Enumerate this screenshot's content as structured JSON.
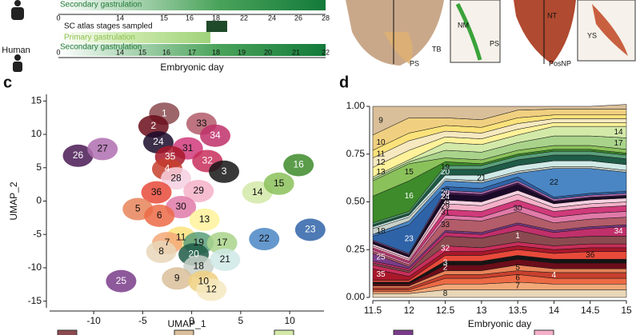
{
  "timeline": {
    "upper_label": "Secondary gastrulation",
    "upper_ticks": [
      0,
      14,
      15,
      16,
      18,
      22,
      24,
      26,
      28
    ],
    "species": "Human",
    "sc_label": "SC atlas stages sampled",
    "primary_label": "Primary gastrulation",
    "secondary_label": "Secondary gastrulation",
    "lower_ticks": [
      0,
      14,
      15,
      16,
      17,
      18,
      19,
      20,
      21,
      22
    ],
    "axis_title": "Embryonic day"
  },
  "images": {
    "labels": [
      "NM",
      "PS",
      "TB",
      "PS",
      "NT",
      "YS",
      "PosNP"
    ]
  },
  "panels": [
    "c",
    "d"
  ],
  "umap": {
    "type": "scatter",
    "x_label": "UMAP_1",
    "y_label": "UMAP_2",
    "xlim": [
      -14.5,
      13.5
    ],
    "ylim": [
      -16,
      16
    ],
    "xticks": [
      -10,
      -5,
      0,
      5,
      10
    ],
    "yticks": [
      -15,
      -10,
      -5,
      0,
      5,
      10,
      15
    ],
    "clusters": [
      {
        "label": "1",
        "x": -2.8,
        "y": 13.1
      },
      {
        "label": "2",
        "x": -3.9,
        "y": 11.2
      },
      {
        "label": "33",
        "x": 1.0,
        "y": 11.6
      },
      {
        "label": "34",
        "x": 2.4,
        "y": 9.8
      },
      {
        "label": "24",
        "x": -3.4,
        "y": 8.8
      },
      {
        "label": "31",
        "x": -0.4,
        "y": 7.9
      },
      {
        "label": "35",
        "x": -2.2,
        "y": 6.6
      },
      {
        "label": "32",
        "x": 1.6,
        "y": 6.0
      },
      {
        "label": "4",
        "x": -2.5,
        "y": 4.8
      },
      {
        "label": "28",
        "x": -1.6,
        "y": 3.4
      },
      {
        "label": "3",
        "x": 3.3,
        "y": 4.4
      },
      {
        "label": "36",
        "x": -3.6,
        "y": 1.3
      },
      {
        "label": "29",
        "x": 0.7,
        "y": 1.5
      },
      {
        "label": "30",
        "x": -1.1,
        "y": -0.9
      },
      {
        "label": "5",
        "x": -5.5,
        "y": -1.2
      },
      {
        "label": "6",
        "x": -3.3,
        "y": -2.2
      },
      {
        "label": "13",
        "x": 1.3,
        "y": -2.8
      },
      {
        "label": "11",
        "x": -1.1,
        "y": -5.5
      },
      {
        "label": "7",
        "x": -2.5,
        "y": -6.3
      },
      {
        "label": "8",
        "x": -3.1,
        "y": -7.6
      },
      {
        "label": "19",
        "x": 0.7,
        "y": -6.3
      },
      {
        "label": "17",
        "x": 3.1,
        "y": -6.3
      },
      {
        "label": "20",
        "x": 0.2,
        "y": -8.0
      },
      {
        "label": "18",
        "x": 0.7,
        "y": -9.8
      },
      {
        "label": "21",
        "x": 3.4,
        "y": -8.8
      },
      {
        "label": "9",
        "x": -1.5,
        "y": -11.6
      },
      {
        "label": "10",
        "x": 1.2,
        "y": -12.1
      },
      {
        "label": "12",
        "x": 2.0,
        "y": -13.3
      },
      {
        "label": "14",
        "x": 6.7,
        "y": 1.3
      },
      {
        "label": "15",
        "x": 8.9,
        "y": 2.6
      },
      {
        "label": "16",
        "x": 10.9,
        "y": 5.4
      },
      {
        "label": "22",
        "x": 7.4,
        "y": -5.7
      },
      {
        "label": "23",
        "x": 12.1,
        "y": -4.3
      },
      {
        "label": "25",
        "x": -7.2,
        "y": -12.0
      },
      {
        "label": "26",
        "x": -11.6,
        "y": 6.8
      },
      {
        "label": "27",
        "x": -9.1,
        "y": 7.8
      }
    ]
  },
  "chart_data": {
    "type": "area",
    "x_label": "Embryonic day",
    "x": [
      11.5,
      12,
      12.5,
      13,
      13.5,
      14,
      14.5,
      15
    ],
    "xlim": [
      11.5,
      15
    ],
    "xticks": [
      11.5,
      12,
      12.5,
      13,
      13.5,
      14,
      14.5,
      15
    ],
    "ylim": [
      0,
      1
    ],
    "yticks": [
      {
        "value": 0,
        "label": "0.00"
      },
      0.25,
      {
        "value": 0.5,
        "label": "0.50"
      },
      0.75,
      {
        "value": 1,
        "label": "1.00"
      }
    ],
    "stacked": true,
    "series": [
      {
        "name": "8",
        "color": "#e8d6b8",
        "values": [
          0.02,
          0.02,
          0.04,
          0.04,
          0.04,
          0.04,
          0.04,
          0.04
        ]
      },
      {
        "name": "7",
        "color": "#f3a878",
        "values": [
          0.01,
          0.01,
          0.03,
          0.03,
          0.04,
          0.03,
          0.03,
          0.03
        ]
      },
      {
        "name": "6",
        "color": "#ec6a45",
        "values": [
          0.01,
          0.01,
          0.03,
          0.03,
          0.04,
          0.03,
          0.03,
          0.03
        ]
      },
      {
        "name": "4",
        "color": "#c7402e",
        "values": [
          0.01,
          0.01,
          0.02,
          0.02,
          0.02,
          0.03,
          0.03,
          0.03
        ]
      },
      {
        "name": "5",
        "color": "#e8845a",
        "values": [
          0.01,
          0.01,
          0.02,
          0.02,
          0.03,
          0.02,
          0.02,
          0.02
        ]
      },
      {
        "name": "2",
        "color": "#6b0d1a",
        "values": [
          0.01,
          0.01,
          0.03,
          0.03,
          0.03,
          0.03,
          0.03,
          0.03
        ]
      },
      {
        "name": "3",
        "color": "#151515",
        "values": [
          0.01,
          0.01,
          0.02,
          0.02,
          0.02,
          0.02,
          0.02,
          0.02
        ]
      },
      {
        "name": "36",
        "color": "#e84a3a",
        "values": [
          0.01,
          0.01,
          0.03,
          0.03,
          0.03,
          0.03,
          0.04,
          0.04
        ]
      },
      {
        "name": "35",
        "color": "#a8182a",
        "values": [
          0.06,
          0.02,
          0.02,
          0.02,
          0.02,
          0.02,
          0.02,
          0.02
        ]
      },
      {
        "name": "32",
        "color": "#c82e5a",
        "values": [
          0.02,
          0.02,
          0.03,
          0.02,
          0.02,
          0.02,
          0.02,
          0.02
        ]
      },
      {
        "name": "1",
        "color": "#8b4a4f",
        "values": [
          0.01,
          0.01,
          0.05,
          0.05,
          0.06,
          0.04,
          0.04,
          0.04
        ]
      },
      {
        "name": "34",
        "color": "#c0306a",
        "values": [
          0.01,
          0.01,
          0.02,
          0.02,
          0.03,
          0.03,
          0.04,
          0.05
        ]
      },
      {
        "name": "25",
        "color": "#7a3c8a",
        "values": [
          0.04,
          0.01,
          0.01,
          0.01,
          0.01,
          0.01,
          0.01,
          0.01
        ]
      },
      {
        "name": "33",
        "color": "#b35c6a",
        "values": [
          0.01,
          0.01,
          0.06,
          0.06,
          0.06,
          0.04,
          0.04,
          0.04
        ]
      },
      {
        "name": "30",
        "color": "#e07aa8",
        "values": [
          0.01,
          0.01,
          0.02,
          0.02,
          0.03,
          0.03,
          0.03,
          0.03
        ]
      },
      {
        "name": "31",
        "color": "#d03a7a",
        "values": [
          0.01,
          0.01,
          0.03,
          0.03,
          0.03,
          0.03,
          0.03,
          0.03
        ]
      },
      {
        "name": "29",
        "color": "#f4b0c8",
        "values": [
          0.01,
          0.01,
          0.03,
          0.03,
          0.03,
          0.02,
          0.02,
          0.02
        ]
      },
      {
        "name": "28",
        "color": "#f6d0e0",
        "values": [
          0.01,
          0.01,
          0.02,
          0.02,
          0.02,
          0.02,
          0.02,
          0.02
        ]
      },
      {
        "name": "24",
        "color": "#1a0a2a",
        "values": [
          0.01,
          0.01,
          0.03,
          0.03,
          0.03,
          0.01,
          0.01,
          0.01
        ]
      },
      {
        "name": "26",
        "color": "#4a1a55",
        "values": [
          0.005,
          0.005,
          0.01,
          0.01,
          0.01,
          0.005,
          0.005,
          0.005
        ]
      },
      {
        "name": "27",
        "color": "#b06fb0",
        "values": [
          0.005,
          0.005,
          0.01,
          0.01,
          0.01,
          0.01,
          0.01,
          0.01
        ]
      },
      {
        "name": "23",
        "color": "#2f63a8",
        "values": [
          0.02,
          0.15,
          0.02,
          0.02,
          0.02,
          0.01,
          0.01,
          0.01
        ]
      },
      {
        "name": "22",
        "color": "#4a86c4",
        "values": [
          0.01,
          0.02,
          0.03,
          0.03,
          0.02,
          0.15,
          0.13,
          0.1
        ]
      },
      {
        "name": "18",
        "color": "#c8d1c9",
        "values": [
          0.03,
          0.02,
          0.01,
          0.01,
          0.01,
          0.01,
          0.01,
          0.01
        ]
      },
      {
        "name": "21",
        "color": "#cfe9e6",
        "values": [
          0.01,
          0.01,
          0.02,
          0.03,
          0.03,
          0.03,
          0.03,
          0.03
        ]
      },
      {
        "name": "20",
        "color": "#1f5b47",
        "values": [
          0.01,
          0.01,
          0.03,
          0.03,
          0.03,
          0.03,
          0.03,
          0.03
        ]
      },
      {
        "name": "19",
        "color": "#5a9f7a",
        "values": [
          0.01,
          0.01,
          0.02,
          0.02,
          0.02,
          0.02,
          0.02,
          0.02
        ]
      },
      {
        "name": "16",
        "color": "#3d8b2a",
        "values": [
          0.14,
          0.16,
          0.02,
          0.01,
          0.01,
          0.01,
          0.01,
          0.01
        ]
      },
      {
        "name": "15",
        "color": "#8bc15a",
        "values": [
          0.08,
          0.09,
          0.02,
          0.02,
          0.02,
          0.02,
          0.02,
          0.02
        ]
      },
      {
        "name": "17",
        "color": "#a9d38a",
        "values": [
          0.01,
          0.01,
          0.04,
          0.04,
          0.04,
          0.05,
          0.05,
          0.06
        ]
      },
      {
        "name": "14",
        "color": "#d3e9a8",
        "values": [
          0.01,
          0.01,
          0.04,
          0.04,
          0.04,
          0.05,
          0.05,
          0.06
        ]
      },
      {
        "name": "13",
        "color": "#fff29a",
        "values": [
          0.05,
          0.05,
          0.03,
          0.03,
          0.03,
          0.02,
          0.02,
          0.02
        ]
      },
      {
        "name": "12",
        "color": "#f6e9c0",
        "values": [
          0.05,
          0.05,
          0.03,
          0.03,
          0.03,
          0.02,
          0.02,
          0.02
        ]
      },
      {
        "name": "11",
        "color": "#fbe27a",
        "values": [
          0.04,
          0.04,
          0.03,
          0.03,
          0.03,
          0.02,
          0.02,
          0.02
        ]
      },
      {
        "name": "10",
        "color": "#f0d080",
        "values": [
          0.08,
          0.08,
          0.04,
          0.04,
          0.04,
          0.03,
          0.03,
          0.03
        ]
      },
      {
        "name": "9",
        "color": "#d9bf9a",
        "values": [
          0.15,
          0.06,
          0.06,
          0.07,
          0.02,
          0.015,
          0.015,
          0.025
        ]
      }
    ]
  }
}
